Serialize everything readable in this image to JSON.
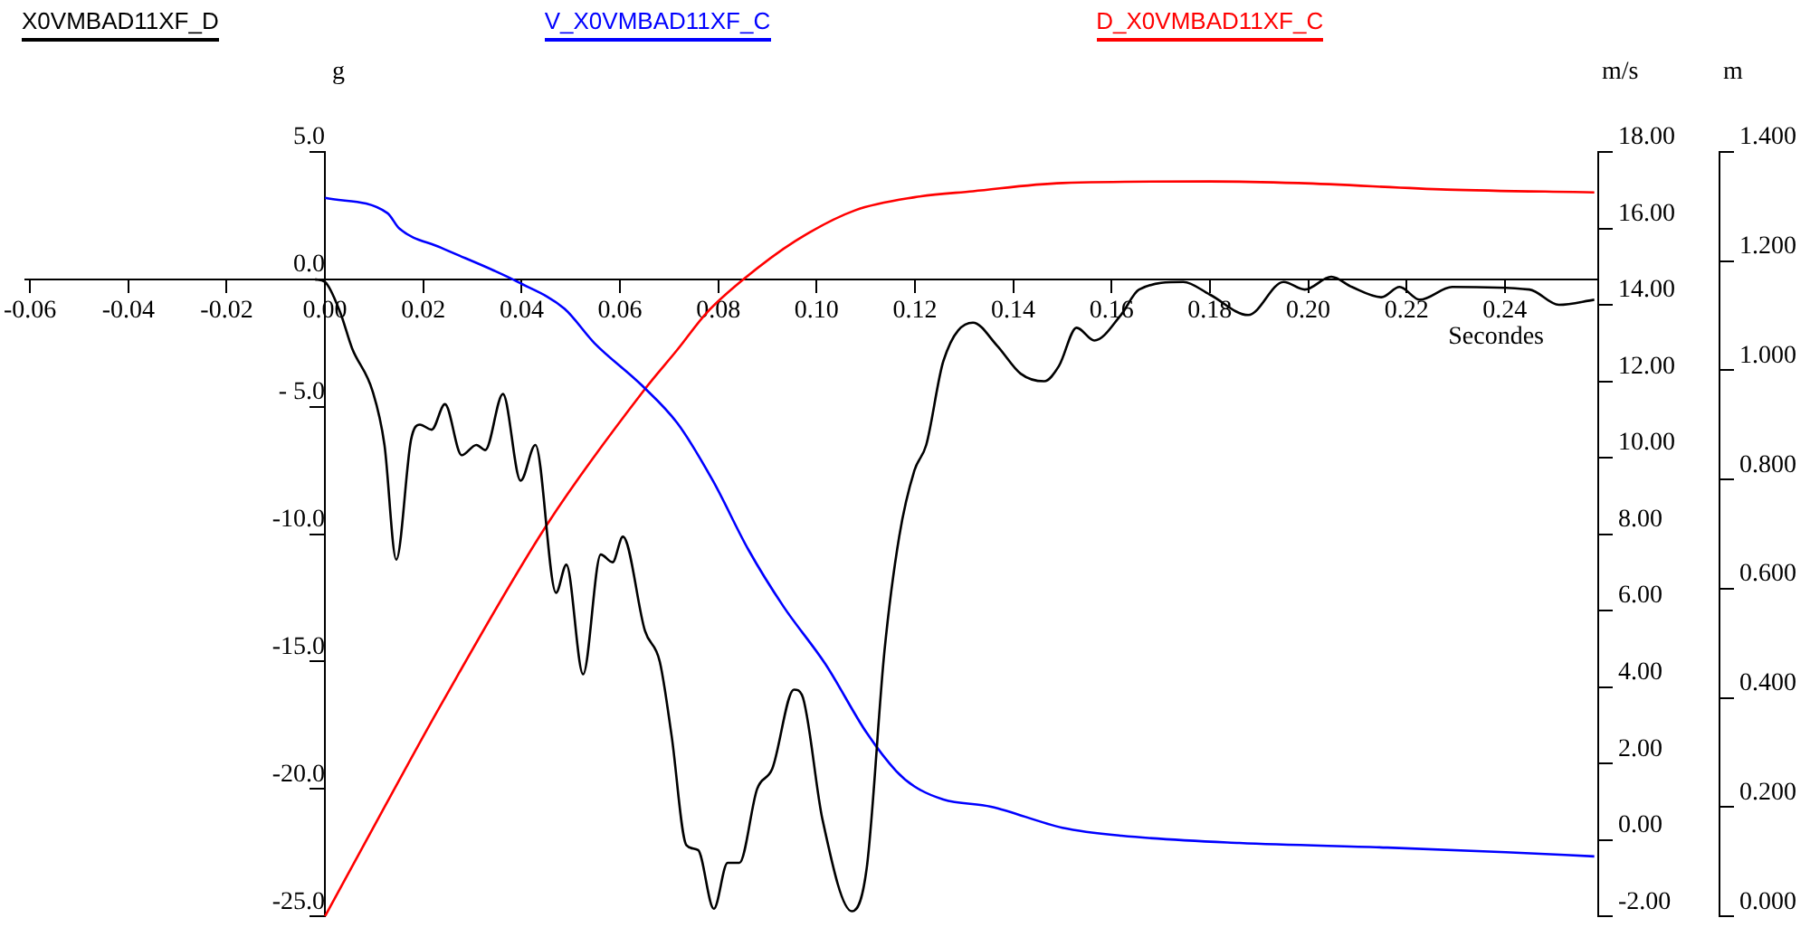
{
  "chart_data": {
    "type": "line",
    "xlabel": "Secondes",
    "ylabel": "g",
    "y2label": "m/s",
    "y3label": "m",
    "legend": "top left",
    "grid": false,
    "marker": "none",
    "line_style": "solid",
    "xlim": [
      -0.061,
      0.259
    ],
    "xticks": [
      {
        "value": -0.06,
        "label": "-0.06"
      },
      {
        "value": -0.04,
        "label": "-0.04"
      },
      {
        "value": -0.02,
        "label": "-0.02"
      },
      {
        "value": 0,
        "label": "0.00"
      },
      {
        "value": 0.02,
        "label": "0.02"
      },
      {
        "value": 0.04,
        "label": "0.04"
      },
      {
        "value": 0.06,
        "label": "0.06"
      },
      {
        "value": 0.08,
        "label": "0.08"
      },
      {
        "value": 0.1,
        "label": "0.10"
      },
      {
        "value": 0.12,
        "label": "0.12"
      },
      {
        "value": 0.14,
        "label": "0.14"
      },
      {
        "value": 0.16,
        "label": "0.16"
      },
      {
        "value": 0.18,
        "label": "0.18"
      },
      {
        "value": 0.2,
        "label": "0.20"
      },
      {
        "value": 0.22,
        "label": "0.22"
      },
      {
        "value": 0.24,
        "label": "0.24"
      }
    ],
    "ylim": [
      -25,
      5
    ],
    "yticks": [
      {
        "value": 5,
        "label": "5.0"
      },
      {
        "value": 0,
        "label": "0.0"
      },
      {
        "value": -5,
        "label": "- 5.0"
      },
      {
        "value": -10,
        "label": "-10.0"
      },
      {
        "value": -15,
        "label": "-15.0"
      },
      {
        "value": -20,
        "label": "-20.0"
      },
      {
        "value": -25,
        "label": "-25.0"
      }
    ],
    "y2lim": [
      -2,
      18
    ],
    "y2ticks": [
      {
        "value": 18,
        "label": "18.00"
      },
      {
        "value": 16,
        "label": "16.00"
      },
      {
        "value": 14,
        "label": "14.00"
      },
      {
        "value": 12,
        "label": "12.00"
      },
      {
        "value": 10,
        "label": "10.00"
      },
      {
        "value": 8,
        "label": "8.00"
      },
      {
        "value": 6,
        "label": "6.00"
      },
      {
        "value": 4,
        "label": "4.00"
      },
      {
        "value": 2,
        "label": "2.00"
      },
      {
        "value": 0,
        "label": "0.00"
      },
      {
        "value": -2,
        "label": "-2.00"
      }
    ],
    "y3lim": [
      0,
      1.4
    ],
    "y3ticks": [
      {
        "value": 1.4,
        "label": "1.400"
      },
      {
        "value": 1.2,
        "label": "1.200"
      },
      {
        "value": 1,
        "label": "1.000"
      },
      {
        "value": 0.8,
        "label": "0.800"
      },
      {
        "value": 0.6,
        "label": "0.600"
      },
      {
        "value": 0.4,
        "label": "0.400"
      },
      {
        "value": 0.2,
        "label": "0.200"
      },
      {
        "value": 0,
        "label": "0.000"
      }
    ],
    "series": [
      {
        "name": "X0VMBAD11XF_D",
        "color": "#000000",
        "axis": "y",
        "x": [
          -0.002,
          0,
          0.0031,
          0.0055,
          0.0097,
          0.0121,
          0.0145,
          0.0175,
          0.0193,
          0.0217,
          0.0244,
          0.0278,
          0.0308,
          0.0326,
          0.0362,
          0.0398,
          0.0428,
          0.047,
          0.0491,
          0.0525,
          0.0561,
          0.0585,
          0.0606,
          0.0651,
          0.0681,
          0.0705,
          0.0735,
          0.0759,
          0.0791,
          0.0819,
          0.0843,
          0.0879,
          0.091,
          0.0954,
          0.097,
          0.1012,
          0.1072,
          0.1102,
          0.1138,
          0.1168,
          0.1199,
          0.1223,
          0.1258,
          0.1318,
          0.1367,
          0.1415,
          0.1463,
          0.1493,
          0.1529,
          0.1565,
          0.1619,
          0.1656,
          0.1746,
          0.18,
          0.1878,
          0.195,
          0.1993,
          0.2047,
          0.2089,
          0.2149,
          0.2186,
          0.2227,
          0.2293,
          0.245,
          0.251,
          0.2582
        ],
        "values": [
          0,
          -0.1,
          -1.3,
          -2.7,
          -4.4,
          -6.5,
          -11,
          -6.3,
          -5.7,
          -5.9,
          -4.9,
          -6.9,
          -6.5,
          -6.7,
          -4.5,
          -7.9,
          -6.5,
          -12.3,
          -11.2,
          -15.5,
          -10.8,
          -11.1,
          -10.1,
          -13.8,
          -15,
          -17.9,
          -22.2,
          -22.4,
          -24.7,
          -22.9,
          -22.9,
          -20,
          -19.2,
          -16.1,
          -16.3,
          -21.2,
          -24.8,
          -23.1,
          -14.6,
          -10.1,
          -7.5,
          -6.5,
          -3.2,
          -1.7,
          -2.6,
          -3.7,
          -4,
          -3.4,
          -1.9,
          -2.4,
          -1.4,
          -0.4,
          -0.1,
          -0.6,
          -1.4,
          -0.1,
          -0.4,
          0.1,
          -0.3,
          -0.7,
          -0.3,
          -0.8,
          -0.3,
          -0.4,
          -1,
          -0.8
        ]
      },
      {
        "name": "V_X0VMBAD11XF_C",
        "color": "#0000ff",
        "axis": "y2",
        "x": [
          0,
          0.0127,
          0.0151,
          0.0235,
          0.0343,
          0.0392,
          0.0487,
          0.0548,
          0.0644,
          0.0717,
          0.0789,
          0.0861,
          0.0933,
          0.1018,
          0.1102,
          0.1162,
          0.1199,
          0.1258,
          0.1355,
          0.15,
          0.162,
          0.186,
          0.2161,
          0.2402,
          0.2582
        ],
        "values": [
          16.8,
          16.4,
          16,
          15.5,
          14.9,
          14.6,
          13.9,
          13,
          11.9,
          10.9,
          9.4,
          7.6,
          6.1,
          4.6,
          2.8,
          1.8,
          1.4,
          1.06,
          0.87,
          0.32,
          0.11,
          -0.08,
          -0.2,
          -0.32,
          -0.43
        ]
      },
      {
        "name": "D_X0VMBAD11XF_C",
        "color": "#ff0000",
        "axis": "y3",
        "x": [
          0,
          0.0121,
          0.0235,
          0.0452,
          0.0651,
          0.0717,
          0.0776,
          0.0849,
          0.0957,
          0.1078,
          0.1199,
          0.1318,
          0.15,
          0.18,
          0.198,
          0.2282,
          0.2582
        ],
        "values": [
          0,
          0.2,
          0.386,
          0.718,
          0.966,
          1.038,
          1.105,
          1.165,
          1.237,
          1.293,
          1.317,
          1.328,
          1.343,
          1.346,
          1.343,
          1.331,
          1.326
        ]
      }
    ]
  }
}
